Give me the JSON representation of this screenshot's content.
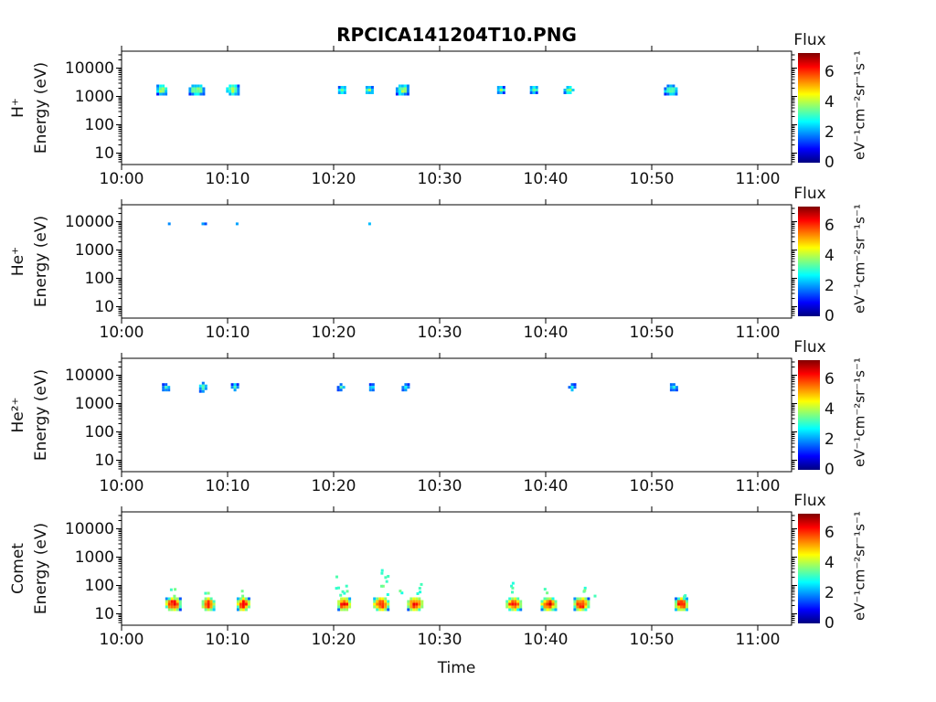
{
  "figure": {
    "background": "#ffffff"
  },
  "chart_data": {
    "type": "heatmap",
    "title": "RPCICA141204T10.PNG",
    "xlabel": "Time",
    "ylabel": "Energy (eV)",
    "x_ticks": [
      "10:00",
      "10:10",
      "10:20",
      "10:30",
      "10:40",
      "10:50",
      "11:00"
    ],
    "x_tick_minutes": [
      0,
      10,
      20,
      30,
      40,
      50,
      60
    ],
    "x_range_minutes": [
      0,
      63.2
    ],
    "y_ticks": [
      "10000",
      "1000",
      "100",
      "10"
    ],
    "y_tick_values": [
      10000,
      1000,
      100,
      10
    ],
    "y_range_ev": [
      4,
      40000
    ],
    "y_scale": "log",
    "grid": false,
    "colorbar": {
      "label": "Flux",
      "unit": "eV⁻¹cm⁻²sr⁻¹s⁻¹",
      "ticks": [
        0,
        2,
        4,
        6
      ],
      "range": [
        0,
        7.3
      ],
      "colormap": "jet",
      "colormap_stops": [
        "#000080",
        "#0000ff",
        "#00ffff",
        "#ffff00",
        "#ff0000",
        "#800000"
      ]
    },
    "panels": [
      {
        "species": "H⁺",
        "events": [
          {
            "t": 3.8,
            "e": 1700,
            "flux": 3.8,
            "dur": 1.1,
            "espan": 0.34
          },
          {
            "t": 7.1,
            "e": 1700,
            "flux": 3.9,
            "dur": 1.5,
            "espan": 0.36
          },
          {
            "t": 10.5,
            "e": 1700,
            "flux": 3.8,
            "dur": 1.3,
            "espan": 0.34
          },
          {
            "t": 20.8,
            "e": 1700,
            "flux": 3.6,
            "dur": 0.9,
            "espan": 0.32
          },
          {
            "t": 23.4,
            "e": 1700,
            "flux": 3.6,
            "dur": 0.9,
            "espan": 0.32
          },
          {
            "t": 26.5,
            "e": 1700,
            "flux": 3.7,
            "dur": 1.2,
            "espan": 0.34
          },
          {
            "t": 35.8,
            "e": 1700,
            "flux": 3.4,
            "dur": 0.9,
            "espan": 0.32
          },
          {
            "t": 38.9,
            "e": 1700,
            "flux": 3.5,
            "dur": 0.9,
            "espan": 0.32
          },
          {
            "t": 42.2,
            "e": 1700,
            "flux": 3.6,
            "dur": 1.1,
            "espan": 0.32
          },
          {
            "t": 51.8,
            "e": 1700,
            "flux": 3.5,
            "dur": 1.4,
            "espan": 0.34
          }
        ],
        "speckles": []
      },
      {
        "species": "He⁺",
        "events": [
          {
            "t": 4.5,
            "e": 8500,
            "flux": 2.0,
            "dur": 0.3,
            "espan": 0.1
          },
          {
            "t": 7.8,
            "e": 8500,
            "flux": 2.1,
            "dur": 0.45,
            "espan": 0.1
          },
          {
            "t": 10.9,
            "e": 8500,
            "flux": 2.0,
            "dur": 0.3,
            "espan": 0.1
          },
          {
            "t": 23.4,
            "e": 8500,
            "flux": 1.9,
            "dur": 0.3,
            "espan": 0.1
          }
        ],
        "speckles": []
      },
      {
        "species": "He²⁺",
        "events": [
          {
            "t": 4.2,
            "e": 3800,
            "flux": 3.0,
            "dur": 0.8,
            "espan": 0.32
          },
          {
            "t": 7.7,
            "e": 3800,
            "flux": 3.1,
            "dur": 0.9,
            "espan": 0.34
          },
          {
            "t": 10.7,
            "e": 3800,
            "flux": 3.0,
            "dur": 0.8,
            "espan": 0.3
          },
          {
            "t": 20.7,
            "e": 3800,
            "flux": 2.9,
            "dur": 0.7,
            "espan": 0.3
          },
          {
            "t": 23.6,
            "e": 3800,
            "flux": 2.9,
            "dur": 0.6,
            "espan": 0.3
          },
          {
            "t": 26.8,
            "e": 3800,
            "flux": 3.0,
            "dur": 0.8,
            "espan": 0.32
          },
          {
            "t": 42.5,
            "e": 3800,
            "flux": 2.9,
            "dur": 0.7,
            "espan": 0.3
          },
          {
            "t": 52.1,
            "e": 3800,
            "flux": 3.0,
            "dur": 0.9,
            "espan": 0.32
          }
        ],
        "speckles": []
      },
      {
        "species": "Comet",
        "events": [
          {
            "t": 4.9,
            "e": 22,
            "flux": 6.4,
            "dur": 1.6,
            "espan": 0.5
          },
          {
            "t": 8.2,
            "e": 22,
            "flux": 6.3,
            "dur": 1.4,
            "espan": 0.5
          },
          {
            "t": 11.5,
            "e": 22,
            "flux": 6.4,
            "dur": 1.3,
            "espan": 0.5
          },
          {
            "t": 21.0,
            "e": 22,
            "flux": 6.4,
            "dur": 1.4,
            "espan": 0.5
          },
          {
            "t": 24.5,
            "e": 22,
            "flux": 6.5,
            "dur": 1.5,
            "espan": 0.5
          },
          {
            "t": 27.7,
            "e": 22,
            "flux": 6.4,
            "dur": 1.6,
            "espan": 0.5
          },
          {
            "t": 37.0,
            "e": 22,
            "flux": 6.3,
            "dur": 1.5,
            "espan": 0.5
          },
          {
            "t": 40.3,
            "e": 22,
            "flux": 6.4,
            "dur": 1.5,
            "espan": 0.5
          },
          {
            "t": 43.4,
            "e": 22,
            "flux": 6.4,
            "dur": 1.5,
            "espan": 0.5
          },
          {
            "t": 52.8,
            "e": 22,
            "flux": 6.3,
            "dur": 1.4,
            "espan": 0.5
          }
        ],
        "speckles": [
          {
            "t": 4.7,
            "e1": 45,
            "e2": 90,
            "n": 3,
            "flux": 3.3
          },
          {
            "t": 8.1,
            "e1": 45,
            "e2": 80,
            "n": 2,
            "flux": 3.3
          },
          {
            "t": 11.4,
            "e1": 45,
            "e2": 75,
            "n": 2,
            "flux": 3.2
          },
          {
            "t": 20.4,
            "e1": 50,
            "e2": 300,
            "n": 5,
            "flux": 3.3
          },
          {
            "t": 21.2,
            "e1": 45,
            "e2": 120,
            "n": 3,
            "flux": 3.4
          },
          {
            "t": 24.7,
            "e1": 50,
            "e2": 420,
            "n": 8,
            "flux": 3.3
          },
          {
            "t": 26.3,
            "e1": 60,
            "e2": 90,
            "n": 2,
            "flux": 3.2
          },
          {
            "t": 27.9,
            "e1": 45,
            "e2": 140,
            "n": 4,
            "flux": 3.3
          },
          {
            "t": 36.9,
            "e1": 45,
            "e2": 150,
            "n": 4,
            "flux": 3.3
          },
          {
            "t": 40.1,
            "e1": 45,
            "e2": 90,
            "n": 2,
            "flux": 3.2
          },
          {
            "t": 43.3,
            "e1": 45,
            "e2": 110,
            "n": 3,
            "flux": 3.3
          },
          {
            "t": 44.6,
            "e1": 45,
            "e2": 60,
            "n": 1,
            "flux": 3.0
          },
          {
            "t": 53.1,
            "e1": 45,
            "e2": 80,
            "n": 2,
            "flux": 3.2
          }
        ]
      }
    ]
  }
}
